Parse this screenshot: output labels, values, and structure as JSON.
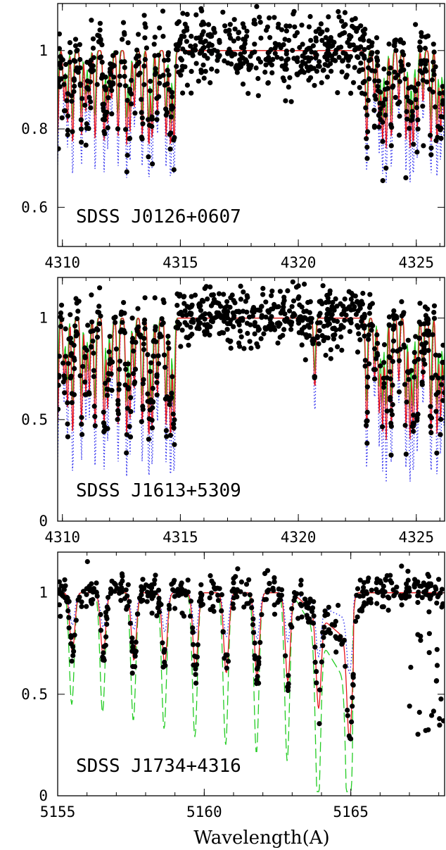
{
  "figure": {
    "xlabel": "Wavelength(A)"
  },
  "chart_data": [
    {
      "type": "scatter",
      "label": "SDSS J0126+0607",
      "x_ticks": [
        "4310",
        "4315",
        "4320",
        "4325"
      ],
      "y_ticks": [
        "0.6",
        "0.8",
        "1"
      ],
      "xlim": [
        4309.8,
        4326.2
      ],
      "ylim": [
        0.5,
        1.12
      ],
      "ytick_values": [
        0.6,
        0.8,
        1.0
      ],
      "xtick_values": [
        4310,
        4315,
        4320,
        4325
      ],
      "colors": {
        "red_model": "#e8141c",
        "green_model": "#22cc22",
        "blue_model": "#2020ee",
        "data": "#000000"
      },
      "continuum_window": [
        4315.0,
        4322.7
      ],
      "band_edges": [
        4313.3,
        4322.8,
        4325.0
      ],
      "depth_scale": 0.25
    },
    {
      "type": "scatter",
      "label": "SDSS J1613+5309",
      "x_ticks": [
        "4310",
        "4315",
        "4320",
        "4325"
      ],
      "y_ticks": [
        "0",
        "0.5",
        "1"
      ],
      "xlim": [
        4309.8,
        4326.2
      ],
      "ylim": [
        0.0,
        1.2
      ],
      "ytick_values": [
        0.0,
        0.5,
        1.0
      ],
      "xtick_values": [
        4310,
        4315,
        4320,
        4325
      ],
      "colors": {
        "red_model": "#e8141c",
        "green_model": "#22cc22",
        "blue_model": "#2020ee",
        "data": "#000000"
      },
      "continuum_window": [
        4315.0,
        4322.7
      ],
      "band_edges": [
        4314.3,
        4322.8,
        4325.0
      ],
      "depth_scale": 0.6
    },
    {
      "type": "scatter",
      "label": "SDSS J1734+4316",
      "x_ticks": [
        "5155",
        "5160",
        "5165"
      ],
      "y_ticks": [
        "0",
        "0.5",
        "1"
      ],
      "xlim": [
        5155.0,
        5168.2
      ],
      "ylim": [
        0.0,
        1.2
      ],
      "ytick_values": [
        0.0,
        0.5,
        1.0
      ],
      "xtick_values": [
        5155,
        5160,
        5165
      ],
      "colors": {
        "red_model": "#e8141c",
        "green_model": "#22cc22",
        "blue_model": "#2020ee",
        "data": "#000000"
      },
      "band_head": 5165.1,
      "line_spacing": 1.05,
      "first_line": 5155.5
    }
  ]
}
